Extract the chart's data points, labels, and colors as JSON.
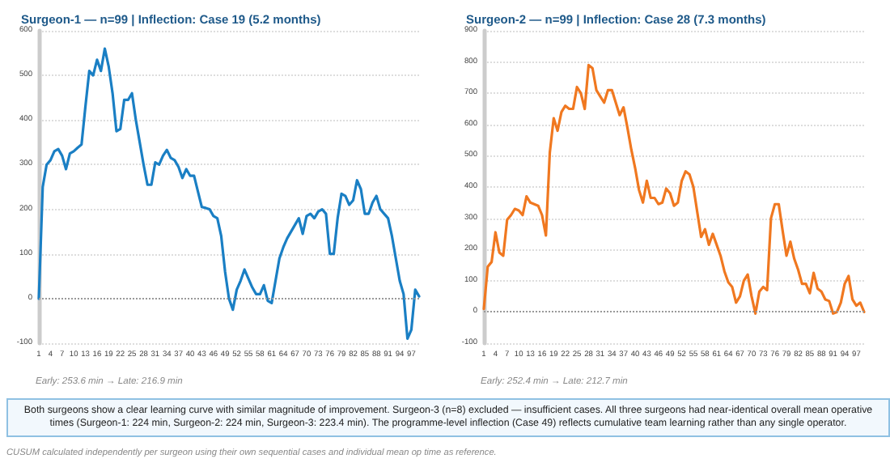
{
  "chart_data": [
    {
      "type": "line",
      "title": "Surgeon-1 — n=99 | Inflection: Case 19 (5.2 months)",
      "categories": [
        "1",
        null,
        null,
        "4",
        null,
        null,
        "7",
        null,
        null,
        "10",
        null,
        null,
        "13",
        null,
        null,
        "16",
        null,
        null,
        "19",
        null,
        null,
        "22",
        null,
        null,
        "25",
        null,
        null,
        "28",
        null,
        null,
        "31",
        null,
        null,
        "34",
        null,
        null,
        "37",
        null,
        null,
        "40",
        null,
        null,
        "43",
        null,
        null,
        "46",
        null,
        null,
        "49",
        null,
        null,
        "52",
        null,
        null,
        "55",
        null,
        null,
        "58",
        null,
        null,
        "61",
        null,
        null,
        "64",
        null,
        null,
        "67",
        null,
        null,
        "70",
        null,
        null,
        "73",
        null,
        null,
        "76",
        null,
        null,
        "79",
        null,
        null,
        "82",
        null,
        null,
        "85",
        null,
        null,
        "88",
        null,
        null,
        "91",
        null,
        null,
        "94",
        null,
        null,
        "97",
        null,
        null
      ],
      "series": [
        {
          "color": "#1a7fc4",
          "values": [
            0,
            250,
            300,
            310,
            330,
            335,
            320,
            290,
            325,
            330,
            338,
            345,
            430,
            510,
            500,
            535,
            510,
            560,
            520,
            460,
            375,
            380,
            445,
            445,
            460,
            400,
            350,
            300,
            255,
            255,
            305,
            300,
            320,
            333,
            315,
            310,
            295,
            270,
            290,
            275,
            275,
            240,
            205,
            203,
            200,
            185,
            180,
            140,
            60,
            0,
            -25,
            20,
            40,
            65,
            45,
            25,
            10,
            10,
            30,
            -5,
            -10,
            40,
            90,
            115,
            135,
            150,
            165,
            180,
            145,
            185,
            190,
            180,
            195,
            200,
            190,
            100,
            100,
            180,
            235,
            230,
            210,
            220,
            265,
            245,
            190,
            190,
            215,
            230,
            200,
            190,
            180,
            140,
            90,
            40,
            10,
            -90,
            -70,
            20,
            5
          ]
        }
      ],
      "ylim": [
        -100,
        600
      ],
      "yticks": [
        -100,
        0,
        100,
        200,
        300,
        400,
        500,
        600
      ],
      "grid": "y",
      "marker": "none",
      "line_style": "solid",
      "ref_lines": [
        {
          "axis": "y",
          "value": 0,
          "color": "#999999",
          "line_style": "dotted"
        }
      ],
      "annotations": [
        "Early: 253.6 min → Late: 216.9 min"
      ]
    },
    {
      "type": "line",
      "title": "Surgeon-2 — n=99 | Inflection: Case 28 (7.3 months)",
      "categories": [
        "1",
        null,
        null,
        "4",
        null,
        null,
        "7",
        null,
        null,
        "10",
        null,
        null,
        "13",
        null,
        null,
        "16",
        null,
        null,
        "19",
        null,
        null,
        "22",
        null,
        null,
        "25",
        null,
        null,
        "28",
        null,
        null,
        "31",
        null,
        null,
        "34",
        null,
        null,
        "37",
        null,
        null,
        "40",
        null,
        null,
        "43",
        null,
        null,
        "46",
        null,
        null,
        "49",
        null,
        null,
        "52",
        null,
        null,
        "55",
        null,
        null,
        "58",
        null,
        null,
        "61",
        null,
        null,
        "64",
        null,
        null,
        "67",
        null,
        null,
        "70",
        null,
        null,
        "73",
        null,
        null,
        "76",
        null,
        null,
        "79",
        null,
        null,
        "82",
        null,
        null,
        "85",
        null,
        null,
        "88",
        null,
        null,
        "91",
        null,
        null,
        "94",
        null,
        null,
        "97",
        null,
        null
      ],
      "series": [
        {
          "color": "#f07820",
          "values": [
            10,
            145,
            160,
            255,
            190,
            180,
            295,
            310,
            330,
            325,
            310,
            370,
            350,
            345,
            340,
            310,
            245,
            510,
            620,
            580,
            640,
            660,
            650,
            650,
            720,
            700,
            650,
            790,
            780,
            710,
            690,
            670,
            710,
            710,
            670,
            630,
            655,
            590,
            520,
            460,
            390,
            350,
            420,
            365,
            365,
            345,
            350,
            395,
            380,
            340,
            350,
            420,
            450,
            440,
            400,
            320,
            240,
            265,
            215,
            250,
            215,
            180,
            130,
            95,
            80,
            30,
            50,
            100,
            120,
            50,
            -5,
            65,
            80,
            70,
            300,
            345,
            345,
            260,
            180,
            225,
            170,
            135,
            90,
            90,
            60,
            125,
            75,
            65,
            40,
            35,
            -5,
            0,
            30,
            90,
            115,
            40,
            20,
            30,
            0
          ]
        }
      ],
      "ylim": [
        -100,
        900
      ],
      "yticks": [
        -100,
        0,
        100,
        200,
        300,
        400,
        500,
        600,
        700,
        800,
        900
      ],
      "grid": "y",
      "marker": "none",
      "line_style": "solid",
      "ref_lines": [
        {
          "axis": "y",
          "value": 0,
          "color": "#999999",
          "line_style": "dotted"
        }
      ],
      "annotations": [
        "Early: 252.4 min → Late: 212.7 min",
        "Both surgeons show a clear learning curve with similar magnitude of improvement. Surgeon-3 (n=8) excluded — insufficient cases. All three surgeons had near-identical overall mean operative times (Surgeon-1: 224 min, Surgeon-2: 224 min, Surgeon-3: 223.4 min). The programme-level inflection (Case 49) reflects cumulative team learning rather than any single operator.",
        "CUSUM calculated independently per surgeon using their own sequential cases and individual mean op time as reference."
      ]
    }
  ]
}
